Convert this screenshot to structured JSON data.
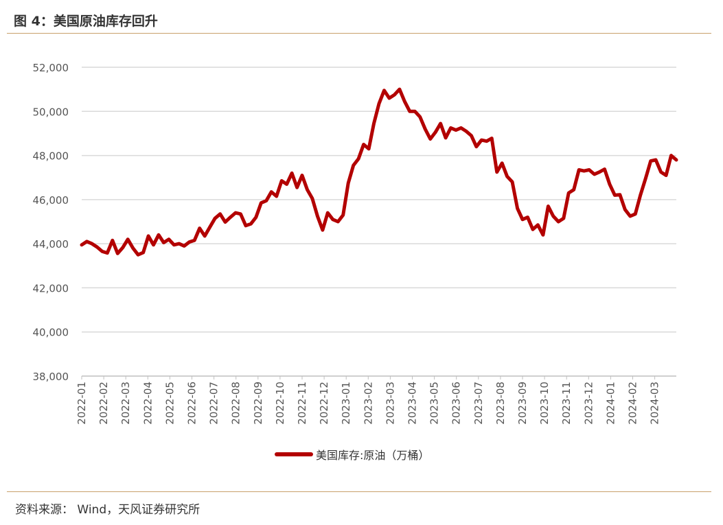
{
  "figure": {
    "title": "图 4：美国原油库存回升",
    "source": "资料来源： Wind，天风证券研究所"
  },
  "chart_data": {
    "type": "line",
    "title": "",
    "xlabel": "",
    "ylabel": "",
    "ylim": [
      38000,
      52000
    ],
    "yticks": [
      "38,000",
      "40,000",
      "42,000",
      "44,000",
      "46,000",
      "48,000",
      "50,000",
      "52,000"
    ],
    "xticks": [
      "2022-01",
      "2022-02",
      "2022-03",
      "2022-04",
      "2022-05",
      "2022-06",
      "2022-07",
      "2022-08",
      "2022-09",
      "2022-10",
      "2022-11",
      "2022-12",
      "2023-01",
      "2023-02",
      "2023-03",
      "2023-04",
      "2023-05",
      "2023-06",
      "2023-07",
      "2023-08",
      "2023-09",
      "2023-10",
      "2023-11",
      "2023-12",
      "2024-01",
      "2024-02",
      "2024-03"
    ],
    "grid": "horizontal",
    "legend_position": "bottom",
    "color": "#b30000",
    "series": [
      {
        "name": "美国库存:原油（万桶）",
        "values": [
          43950,
          44100,
          44000,
          43850,
          43650,
          43580,
          44150,
          43560,
          43820,
          44200,
          43800,
          43500,
          43600,
          44350,
          43950,
          44400,
          44050,
          44200,
          43950,
          44000,
          43900,
          44080,
          44150,
          44700,
          44350,
          44750,
          45150,
          45350,
          44980,
          45200,
          45400,
          45350,
          44820,
          44900,
          45200,
          45850,
          45950,
          46350,
          46150,
          46850,
          46700,
          47200,
          46550,
          47100,
          46450,
          46050,
          45250,
          44620,
          45400,
          45100,
          45000,
          45300,
          46750,
          47550,
          47850,
          48500,
          48300,
          49450,
          50350,
          50950,
          50600,
          50750,
          51000,
          50450,
          50000,
          50000,
          49750,
          49200,
          48750,
          49050,
          49450,
          48800,
          49250,
          49150,
          49250,
          49100,
          48900,
          48400,
          48700,
          48650,
          48780,
          47250,
          47650,
          47050,
          46800,
          45600,
          45100,
          45200,
          44650,
          44850,
          44400,
          45700,
          45250,
          45000,
          45150,
          46300,
          46450,
          47350,
          47300,
          47350,
          47150,
          47250,
          47380,
          46700,
          46200,
          46220,
          45550,
          45250,
          45350,
          46200,
          46950,
          47750,
          47800,
          47250,
          47100,
          48000,
          47800
        ]
      }
    ]
  }
}
